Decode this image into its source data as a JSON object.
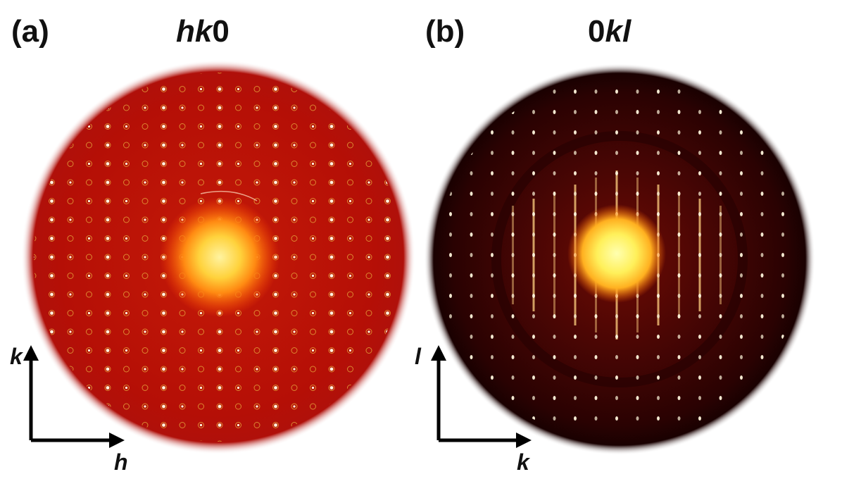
{
  "panels": [
    {
      "label": "(a)",
      "title_italic": "hk",
      "title_plain": "0",
      "axis_vertical": "k",
      "axis_horizontal": "h"
    },
    {
      "label": "(b)",
      "title_plain": "0",
      "title_italic": "kl",
      "axis_vertical": "l",
      "axis_horizontal": "k"
    }
  ],
  "colors": {
    "background": "#ffffff",
    "pattern_a": "#b50f06",
    "pattern_b": "#3a0303",
    "hot_center": "#fff3a0",
    "axis_black": "#000000"
  }
}
